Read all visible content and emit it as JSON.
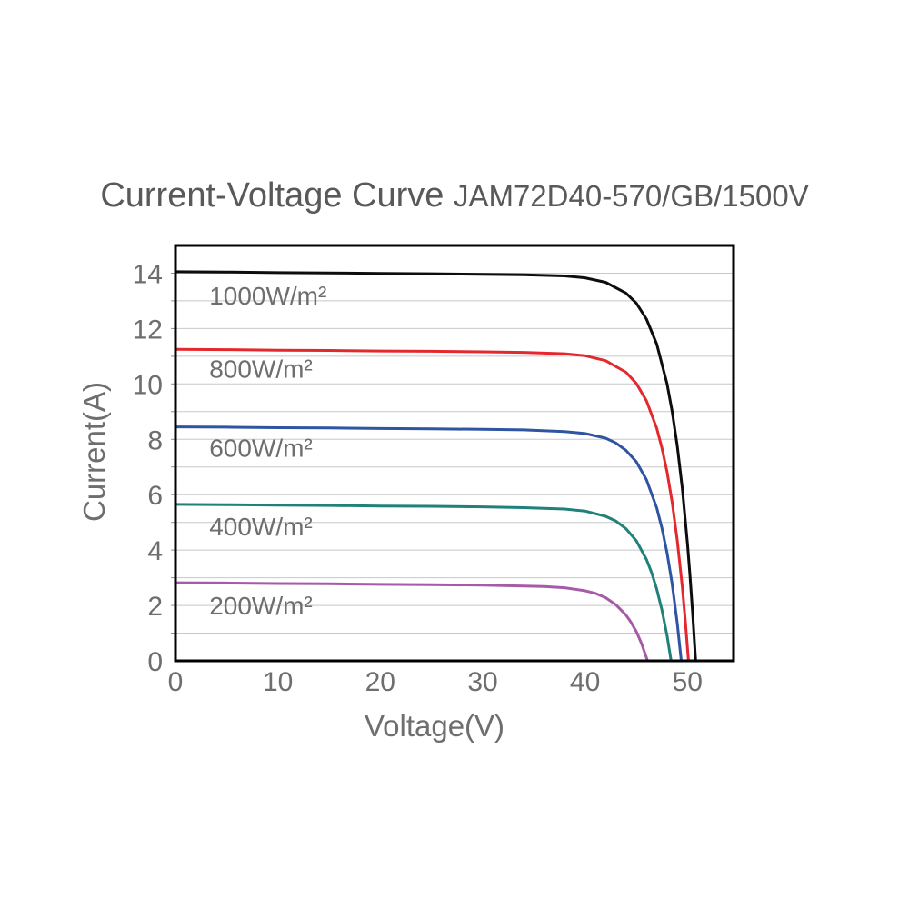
{
  "page": {
    "background": "#ffffff"
  },
  "header": {
    "title": "Current-Voltage Curve",
    "model": "JAM72D40-570/GB/1500V"
  },
  "chart_data": {
    "type": "line",
    "title": "Current-Voltage Curve",
    "subtitle": "JAM72D40-570/GB/1500V",
    "xlabel": "Voltage(V)",
    "ylabel": "Current(A)",
    "xlim": [
      0,
      54.5
    ],
    "ylim": [
      0,
      15
    ],
    "x_ticks": [
      0,
      10,
      20,
      30,
      40,
      50
    ],
    "y_ticks": [
      0,
      2,
      4,
      6,
      8,
      10,
      12,
      14
    ],
    "grid": {
      "horizontal_spacing_a": 1,
      "vertical": false,
      "color": "#c8c8c8"
    },
    "colors": {
      "axis": "#000000",
      "tick_labels": "#6e6e6e",
      "series_labels": "#6e6e6e",
      "title": "#595959"
    },
    "legend_position": "inline-labels-near-curves",
    "series": [
      {
        "name": "1000W/m²",
        "irradiance_w_m2": 1000,
        "color": "#0d0d0d",
        "isc_a": 14.05,
        "voc_v": 50.8,
        "label_pos": [
          3.3,
          13.2
        ],
        "points": [
          [
            0,
            14.05
          ],
          [
            5,
            14.04
          ],
          [
            10,
            14.02
          ],
          [
            15,
            14.01
          ],
          [
            20,
            13.99
          ],
          [
            25,
            13.98
          ],
          [
            30,
            13.96
          ],
          [
            34,
            13.94
          ],
          [
            38,
            13.9
          ],
          [
            40,
            13.83
          ],
          [
            42,
            13.67
          ],
          [
            44,
            13.28
          ],
          [
            45,
            12.92
          ],
          [
            46,
            12.34
          ],
          [
            47,
            11.44
          ],
          [
            48,
            10.01
          ],
          [
            48.5,
            9.02
          ],
          [
            49,
            7.78
          ],
          [
            49.5,
            6.21
          ],
          [
            50,
            4.23
          ],
          [
            50.25,
            3.07
          ],
          [
            50.5,
            1.77
          ],
          [
            50.8,
            0
          ]
        ]
      },
      {
        "name": "800W/m²",
        "irradiance_w_m2": 800,
        "color": "#e4292e",
        "isc_a": 11.25,
        "voc_v": 50.1,
        "label_pos": [
          3.3,
          10.55
        ],
        "points": [
          [
            0,
            11.25
          ],
          [
            5,
            11.24
          ],
          [
            10,
            11.22
          ],
          [
            15,
            11.21
          ],
          [
            20,
            11.19
          ],
          [
            25,
            11.18
          ],
          [
            30,
            11.16
          ],
          [
            34,
            11.14
          ],
          [
            38,
            11.09
          ],
          [
            40,
            11.02
          ],
          [
            42,
            10.84
          ],
          [
            44,
            10.42
          ],
          [
            45,
            10.02
          ],
          [
            46,
            9.39
          ],
          [
            47,
            8.4
          ],
          [
            47.5,
            7.7
          ],
          [
            48,
            6.83
          ],
          [
            48.5,
            5.74
          ],
          [
            49,
            4.37
          ],
          [
            49.5,
            2.65
          ],
          [
            49.8,
            1.42
          ],
          [
            50.1,
            0
          ]
        ]
      },
      {
        "name": "600W/m²",
        "irradiance_w_m2": 600,
        "color": "#2e54a2",
        "isc_a": 8.45,
        "voc_v": 49.4,
        "label_pos": [
          3.3,
          7.7
        ],
        "points": [
          [
            0,
            8.45
          ],
          [
            5,
            8.44
          ],
          [
            10,
            8.42
          ],
          [
            15,
            8.41
          ],
          [
            20,
            8.39
          ],
          [
            25,
            8.38
          ],
          [
            30,
            8.36
          ],
          [
            34,
            8.34
          ],
          [
            38,
            8.28
          ],
          [
            40,
            8.21
          ],
          [
            42,
            8.04
          ],
          [
            43,
            7.87
          ],
          [
            44,
            7.6
          ],
          [
            45,
            7.19
          ],
          [
            46,
            6.54
          ],
          [
            47,
            5.52
          ],
          [
            47.5,
            4.81
          ],
          [
            48,
            3.91
          ],
          [
            48.5,
            2.79
          ],
          [
            49,
            1.38
          ],
          [
            49.4,
            0
          ]
        ]
      },
      {
        "name": "400W/m²",
        "irradiance_w_m2": 400,
        "color": "#20807a",
        "isc_a": 5.65,
        "voc_v": 48.4,
        "label_pos": [
          3.3,
          4.85
        ],
        "points": [
          [
            0,
            5.65
          ],
          [
            5,
            5.64
          ],
          [
            10,
            5.62
          ],
          [
            15,
            5.61
          ],
          [
            20,
            5.59
          ],
          [
            25,
            5.58
          ],
          [
            30,
            5.56
          ],
          [
            34,
            5.53
          ],
          [
            38,
            5.48
          ],
          [
            40,
            5.41
          ],
          [
            42,
            5.22
          ],
          [
            43,
            5.05
          ],
          [
            44,
            4.77
          ],
          [
            45,
            4.34
          ],
          [
            46,
            3.66
          ],
          [
            46.5,
            3.18
          ],
          [
            47,
            2.59
          ],
          [
            47.5,
            1.85
          ],
          [
            48,
            0.92
          ],
          [
            48.4,
            0
          ]
        ]
      },
      {
        "name": "200W/m²",
        "irradiance_w_m2": 200,
        "color": "#a55ba6",
        "isc_a": 2.82,
        "voc_v": 46.1,
        "label_pos": [
          3.3,
          2.0
        ],
        "points": [
          [
            0,
            2.82
          ],
          [
            5,
            2.81
          ],
          [
            10,
            2.79
          ],
          [
            15,
            2.78
          ],
          [
            20,
            2.76
          ],
          [
            25,
            2.75
          ],
          [
            30,
            2.73
          ],
          [
            34,
            2.7
          ],
          [
            36,
            2.68
          ],
          [
            38,
            2.64
          ],
          [
            40,
            2.53
          ],
          [
            41,
            2.44
          ],
          [
            42,
            2.28
          ],
          [
            43,
            2.03
          ],
          [
            44,
            1.65
          ],
          [
            44.5,
            1.39
          ],
          [
            45,
            1.06
          ],
          [
            45.5,
            0.64
          ],
          [
            46.1,
            0
          ]
        ]
      }
    ]
  }
}
